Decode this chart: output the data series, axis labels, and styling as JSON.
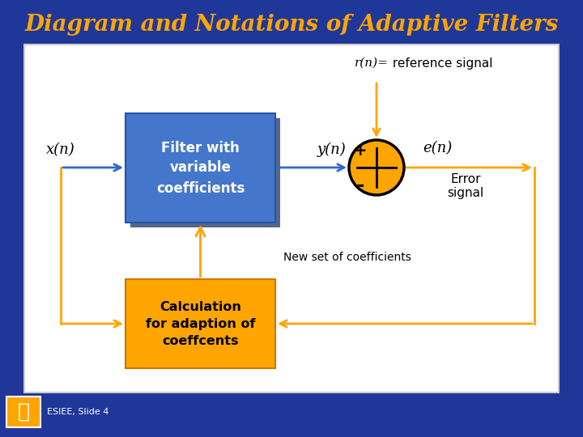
{
  "title": "Diagram and Notations of Adaptive Filters",
  "title_color": "#FFA500",
  "bg_color": "#1e3799",
  "filter_box_color": "#4477cc",
  "filter_box_shadow": "#556688",
  "calc_box_color": "#FFA500",
  "arrow_blue": "#3366cc",
  "arrow_orange": "#FFA500",
  "circle_fill": "#FFA500",
  "circle_edge": "#000000",
  "filter_text": "Filter with\nvariable\ncoefficients",
  "calc_text": "Calculation\nfor adaption of\ncoeffcents",
  "xn_label": "x(n)",
  "yn_label": "y(n)",
  "en_label": "e(n)",
  "rn_label": "r(n)=",
  "ref_label": " reference signal",
  "error_label": "Error\nsignal",
  "new_coeff_label": "New set of coefficients",
  "plus_label": "+",
  "minus_label": "-",
  "esiee_label": "ESIEE, Slide 4"
}
